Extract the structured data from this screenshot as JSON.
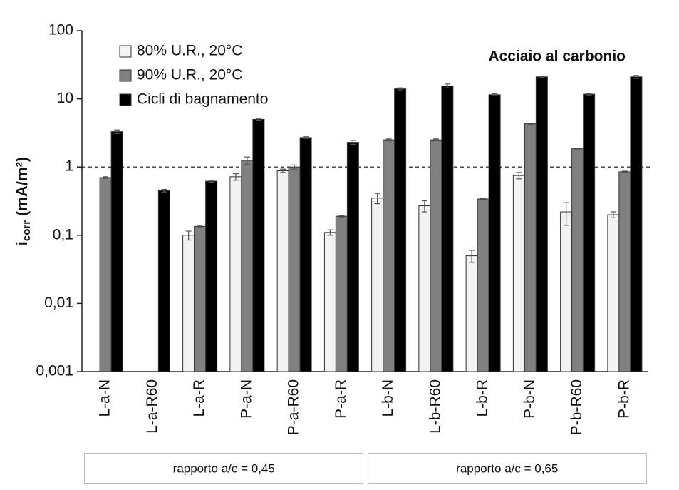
{
  "chart_data": {
    "type": "bar",
    "log_scale": true,
    "grid": false,
    "annotation": "Acciaio al carbonio",
    "ylabel": "i",
    "ylabel_sub": "corr",
    "ylabel_unit": " (mA/m²)",
    "categories": [
      "L-a-N",
      "L-a-R60",
      "L-a-R",
      "P-a-N",
      "P-a-R60",
      "P-a-R",
      "L-b-N",
      "L-b-R60",
      "L-b-R",
      "P-b-N",
      "P-b-R60",
      "P-b-R"
    ],
    "groups": [
      "rapporto a/c = 0,45",
      "rapporto a/c = 0,65"
    ],
    "series": [
      {
        "name": "80% U.R., 20°C",
        "color": "#f2f2f2",
        "values": [
          null,
          null,
          0.1,
          0.72,
          0.88,
          0.11,
          0.35,
          0.27,
          0.05,
          0.75,
          0.22,
          0.2
        ],
        "errors": [
          null,
          null,
          0.015,
          0.08,
          0.05,
          0.01,
          0.06,
          0.05,
          0.01,
          0.08,
          0.08,
          0.02
        ]
      },
      {
        "name": "90% U.R., 20°C",
        "color": "#808080",
        "values": [
          0.7,
          null,
          0.135,
          1.25,
          1.0,
          0.19,
          2.5,
          2.5,
          0.34,
          4.3,
          1.85,
          0.85
        ],
        "errors": [
          0.02,
          null,
          0.005,
          0.15,
          0.07,
          0.005,
          0.08,
          0.08,
          0.01,
          0.1,
          0.05,
          0.02
        ]
      },
      {
        "name": "Cicli di bagnamento",
        "color": "#000000",
        "values": [
          3.3,
          0.45,
          0.62,
          5.0,
          2.7,
          2.3,
          14,
          15.5,
          11.5,
          21,
          11.7,
          21
        ],
        "errors": [
          0.2,
          0.02,
          0.02,
          0.15,
          0.08,
          0.15,
          0.5,
          1,
          0.4,
          0.5,
          0.3,
          1
        ]
      }
    ],
    "reference_line": 1,
    "legend": "top-left",
    "ylim": [
      0.001,
      100
    ],
    "yticks": [
      {
        "value": 0.001,
        "label": "0,001"
      },
      {
        "value": 0.01,
        "label": "0,01"
      },
      {
        "value": 0.1,
        "label": "0,1"
      },
      1,
      10,
      100
    ]
  }
}
